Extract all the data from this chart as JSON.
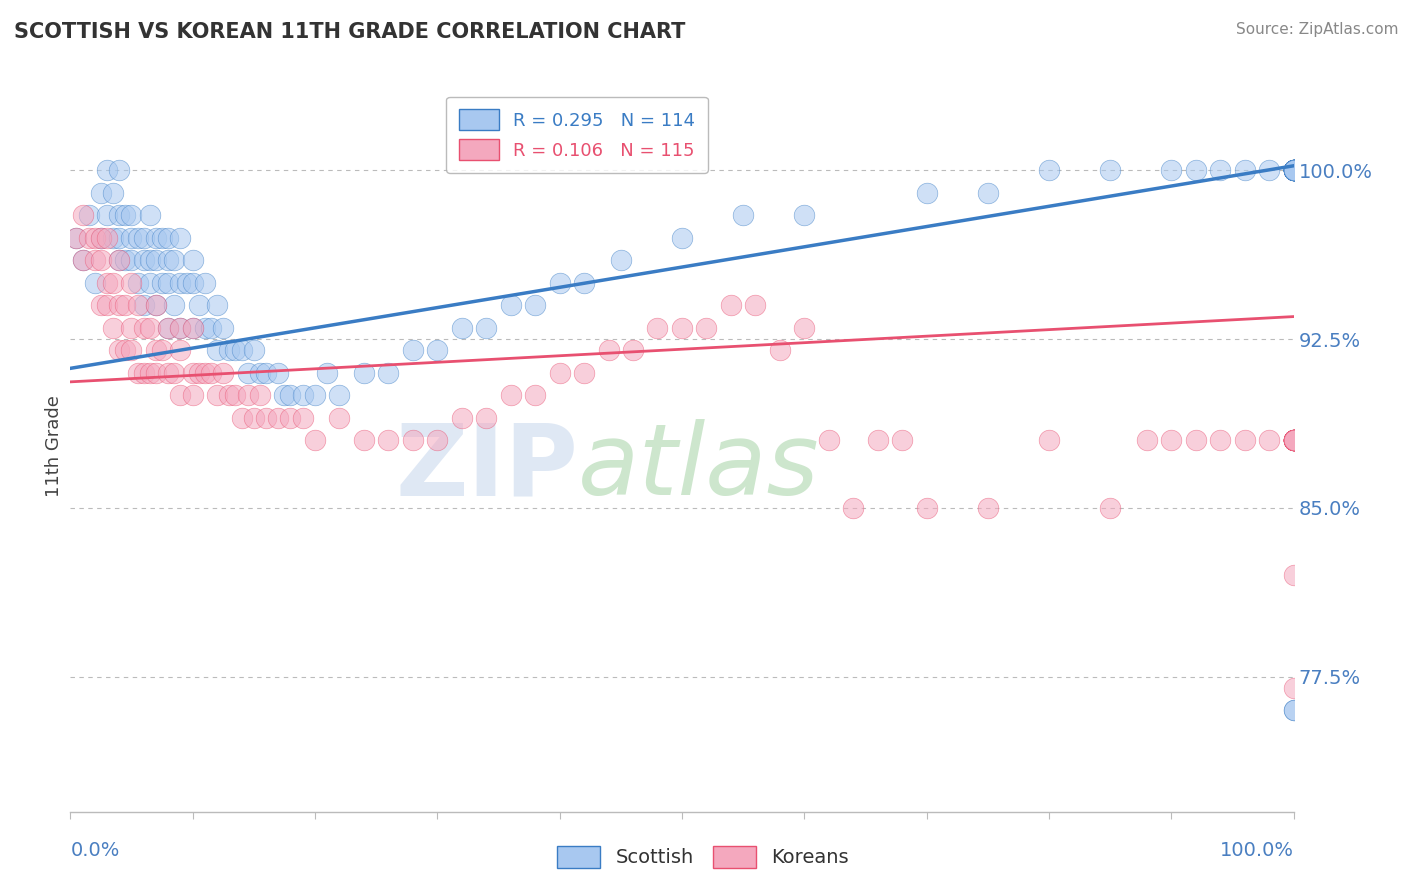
{
  "title": "SCOTTISH VS KOREAN 11TH GRADE CORRELATION CHART",
  "source": "Source: ZipAtlas.com",
  "ylabel": "11th Grade",
  "yright_ticks": [
    0.775,
    0.85,
    0.925,
    1.0
  ],
  "yright_labels": [
    "77.5%",
    "85.0%",
    "92.5%",
    "100.0%"
  ],
  "xlim": [
    0.0,
    1.0
  ],
  "ylim": [
    0.715,
    1.04
  ],
  "scottish_color": "#a8c8f0",
  "korean_color": "#f4a8be",
  "scottish_line_color": "#3a7cc4",
  "korean_line_color": "#e85070",
  "scottish_R": 0.295,
  "scottish_N": 114,
  "korean_R": 0.106,
  "korean_N": 115,
  "background_color": "#ffffff",
  "grid_color": "#bbbbbb",
  "title_color": "#333333",
  "axis_label_color": "#4a7fc1",
  "scottish_trend": [
    0.912,
    1.002
  ],
  "korean_trend": [
    0.906,
    0.935
  ],
  "scottish_x": [
    0.005,
    0.01,
    0.015,
    0.02,
    0.025,
    0.025,
    0.03,
    0.03,
    0.035,
    0.035,
    0.04,
    0.04,
    0.04,
    0.04,
    0.045,
    0.045,
    0.05,
    0.05,
    0.05,
    0.055,
    0.055,
    0.06,
    0.06,
    0.06,
    0.065,
    0.065,
    0.065,
    0.07,
    0.07,
    0.07,
    0.075,
    0.075,
    0.08,
    0.08,
    0.08,
    0.08,
    0.085,
    0.085,
    0.09,
    0.09,
    0.09,
    0.095,
    0.1,
    0.1,
    0.1,
    0.105,
    0.11,
    0.11,
    0.115,
    0.12,
    0.12,
    0.125,
    0.13,
    0.135,
    0.14,
    0.145,
    0.15,
    0.155,
    0.16,
    0.17,
    0.175,
    0.18,
    0.19,
    0.2,
    0.21,
    0.22,
    0.24,
    0.26,
    0.28,
    0.3,
    0.32,
    0.34,
    0.36,
    0.38,
    0.4,
    0.42,
    0.45,
    0.5,
    0.55,
    0.6,
    0.7,
    0.75,
    0.8,
    0.85,
    0.9,
    0.92,
    0.94,
    0.96,
    0.98,
    1.0,
    1.0,
    1.0,
    1.0,
    1.0,
    1.0,
    1.0,
    1.0,
    1.0,
    1.0,
    1.0,
    1.0,
    1.0,
    1.0,
    1.0,
    1.0,
    1.0,
    1.0,
    1.0,
    1.0,
    1.0,
    1.0,
    1.0,
    1.0,
    1.0
  ],
  "scottish_y": [
    0.97,
    0.96,
    0.98,
    0.95,
    0.97,
    0.99,
    0.98,
    1.0,
    0.97,
    0.99,
    0.96,
    0.97,
    0.98,
    1.0,
    0.96,
    0.98,
    0.96,
    0.97,
    0.98,
    0.95,
    0.97,
    0.94,
    0.96,
    0.97,
    0.95,
    0.96,
    0.98,
    0.94,
    0.96,
    0.97,
    0.95,
    0.97,
    0.93,
    0.95,
    0.96,
    0.97,
    0.94,
    0.96,
    0.93,
    0.95,
    0.97,
    0.95,
    0.93,
    0.95,
    0.96,
    0.94,
    0.93,
    0.95,
    0.93,
    0.92,
    0.94,
    0.93,
    0.92,
    0.92,
    0.92,
    0.91,
    0.92,
    0.91,
    0.91,
    0.91,
    0.9,
    0.9,
    0.9,
    0.9,
    0.91,
    0.9,
    0.91,
    0.91,
    0.92,
    0.92,
    0.93,
    0.93,
    0.94,
    0.94,
    0.95,
    0.95,
    0.96,
    0.97,
    0.98,
    0.98,
    0.99,
    0.99,
    1.0,
    1.0,
    1.0,
    1.0,
    1.0,
    1.0,
    1.0,
    1.0,
    1.0,
    1.0,
    1.0,
    1.0,
    1.0,
    1.0,
    1.0,
    1.0,
    1.0,
    1.0,
    1.0,
    1.0,
    1.0,
    1.0,
    0.76,
    0.76,
    1.0,
    1.0,
    1.0,
    1.0,
    1.0,
    1.0,
    1.0,
    1.0
  ],
  "korean_x": [
    0.005,
    0.01,
    0.01,
    0.015,
    0.02,
    0.02,
    0.025,
    0.025,
    0.025,
    0.03,
    0.03,
    0.03,
    0.035,
    0.035,
    0.04,
    0.04,
    0.04,
    0.045,
    0.045,
    0.05,
    0.05,
    0.05,
    0.055,
    0.055,
    0.06,
    0.06,
    0.065,
    0.065,
    0.07,
    0.07,
    0.07,
    0.075,
    0.08,
    0.08,
    0.085,
    0.09,
    0.09,
    0.09,
    0.1,
    0.1,
    0.1,
    0.105,
    0.11,
    0.115,
    0.12,
    0.125,
    0.13,
    0.135,
    0.14,
    0.145,
    0.15,
    0.155,
    0.16,
    0.17,
    0.18,
    0.19,
    0.2,
    0.22,
    0.24,
    0.26,
    0.28,
    0.3,
    0.32,
    0.34,
    0.36,
    0.38,
    0.4,
    0.42,
    0.44,
    0.46,
    0.48,
    0.5,
    0.52,
    0.54,
    0.56,
    0.58,
    0.6,
    0.62,
    0.64,
    0.66,
    0.68,
    0.7,
    0.75,
    0.8,
    0.85,
    0.88,
    0.9,
    0.92,
    0.94,
    0.96,
    0.98,
    1.0,
    1.0,
    1.0,
    1.0,
    1.0,
    1.0,
    1.0,
    1.0,
    1.0,
    1.0,
    1.0,
    1.0,
    1.0,
    1.0,
    1.0,
    1.0,
    1.0,
    1.0,
    1.0,
    1.0,
    1.0,
    1.0,
    1.0,
    1.0
  ],
  "korean_y": [
    0.97,
    0.96,
    0.98,
    0.97,
    0.96,
    0.97,
    0.94,
    0.96,
    0.97,
    0.94,
    0.95,
    0.97,
    0.93,
    0.95,
    0.92,
    0.94,
    0.96,
    0.92,
    0.94,
    0.92,
    0.93,
    0.95,
    0.91,
    0.94,
    0.91,
    0.93,
    0.91,
    0.93,
    0.91,
    0.92,
    0.94,
    0.92,
    0.91,
    0.93,
    0.91,
    0.9,
    0.92,
    0.93,
    0.9,
    0.91,
    0.93,
    0.91,
    0.91,
    0.91,
    0.9,
    0.91,
    0.9,
    0.9,
    0.89,
    0.9,
    0.89,
    0.9,
    0.89,
    0.89,
    0.89,
    0.89,
    0.88,
    0.89,
    0.88,
    0.88,
    0.88,
    0.88,
    0.89,
    0.89,
    0.9,
    0.9,
    0.91,
    0.91,
    0.92,
    0.92,
    0.93,
    0.93,
    0.93,
    0.94,
    0.94,
    0.92,
    0.93,
    0.88,
    0.85,
    0.88,
    0.88,
    0.85,
    0.85,
    0.88,
    0.85,
    0.88,
    0.88,
    0.88,
    0.88,
    0.88,
    0.88,
    0.88,
    0.88,
    0.88,
    0.88,
    0.88,
    0.88,
    0.88,
    0.88,
    0.88,
    0.88,
    0.88,
    0.88,
    0.88,
    0.88,
    0.82,
    0.77,
    0.88,
    0.88,
    0.88,
    0.88,
    0.88,
    0.88,
    0.88,
    0.88
  ]
}
